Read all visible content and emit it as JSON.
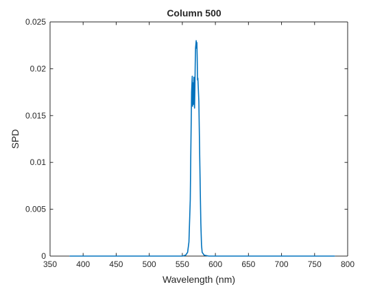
{
  "chart_data": {
    "type": "line",
    "title": "Column 500",
    "xlabel": "Wavelength (nm)",
    "ylabel": "SPD",
    "xlim": [
      350,
      800
    ],
    "ylim": [
      0,
      0.025
    ],
    "xticks": [
      350,
      400,
      450,
      500,
      550,
      600,
      650,
      700,
      750,
      800
    ],
    "xtick_labels": [
      "350",
      "400",
      "450",
      "500",
      "550",
      "600",
      "650",
      "700",
      "750",
      "800"
    ],
    "yticks": [
      0,
      0.005,
      0.01,
      0.015,
      0.02,
      0.025
    ],
    "ytick_labels": [
      "0",
      "0.005",
      "0.01",
      "0.015",
      "0.02",
      "0.025"
    ],
    "grid": false,
    "box": true,
    "line_color": "#0072BD",
    "axis_color": "#262626",
    "series": [
      {
        "x": [
          380,
          400,
          450,
          500,
          550,
          555,
          558,
          560,
          562,
          563,
          564,
          565,
          565.5,
          566,
          566.5,
          567,
          567.5,
          568,
          568.5,
          569,
          569.5,
          570,
          570.5,
          571,
          571.5,
          572,
          572.5,
          573,
          573.5,
          574,
          575,
          576,
          577,
          578,
          579,
          580,
          583,
          590,
          600,
          650,
          700,
          750,
          780
        ],
        "y": [
          0,
          0,
          0,
          0,
          0,
          0.0001,
          0.0004,
          0.0015,
          0.006,
          0.012,
          0.0175,
          0.0192,
          0.016,
          0.0185,
          0.0178,
          0.0162,
          0.0191,
          0.0168,
          0.0158,
          0.0178,
          0.0205,
          0.0222,
          0.0226,
          0.023,
          0.0222,
          0.0228,
          0.0212,
          0.0188,
          0.019,
          0.0182,
          0.0165,
          0.012,
          0.0075,
          0.0035,
          0.0012,
          0.0004,
          0.0001,
          0,
          0,
          0,
          0,
          0,
          0
        ]
      }
    ]
  }
}
